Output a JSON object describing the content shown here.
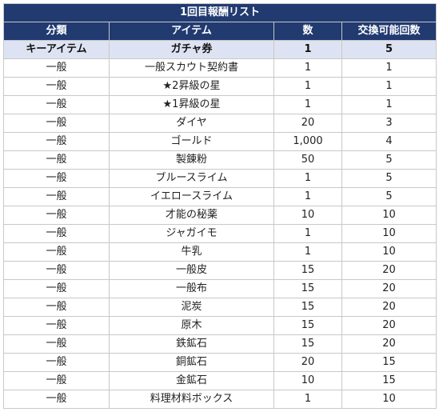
{
  "table": {
    "title": "1回目報酬リスト",
    "headers": [
      "分類",
      "アイテム",
      "数",
      "交換可能回数"
    ],
    "key_row": {
      "category": "キーアイテム",
      "item": "ガチャ券",
      "quantity": "1",
      "exchanges": "5"
    },
    "rows": [
      {
        "category": "一般",
        "item": "一般スカウト契約書",
        "quantity": "1",
        "exchanges": "1"
      },
      {
        "category": "一般",
        "item": "★2昇級の星",
        "quantity": "1",
        "exchanges": "1"
      },
      {
        "category": "一般",
        "item": "★1昇級の星",
        "quantity": "1",
        "exchanges": "1"
      },
      {
        "category": "一般",
        "item": "ダイヤ",
        "quantity": "20",
        "exchanges": "3"
      },
      {
        "category": "一般",
        "item": "ゴールド",
        "quantity": "1,000",
        "exchanges": "4"
      },
      {
        "category": "一般",
        "item": "製錬粉",
        "quantity": "50",
        "exchanges": "5"
      },
      {
        "category": "一般",
        "item": "ブルースライム",
        "quantity": "1",
        "exchanges": "5"
      },
      {
        "category": "一般",
        "item": "イエロースライム",
        "quantity": "1",
        "exchanges": "5"
      },
      {
        "category": "一般",
        "item": "才能の秘薬",
        "quantity": "10",
        "exchanges": "10"
      },
      {
        "category": "一般",
        "item": "ジャガイモ",
        "quantity": "1",
        "exchanges": "10"
      },
      {
        "category": "一般",
        "item": "牛乳",
        "quantity": "1",
        "exchanges": "10"
      },
      {
        "category": "一般",
        "item": "一般皮",
        "quantity": "15",
        "exchanges": "20"
      },
      {
        "category": "一般",
        "item": "一般布",
        "quantity": "15",
        "exchanges": "20"
      },
      {
        "category": "一般",
        "item": "泥炭",
        "quantity": "15",
        "exchanges": "20"
      },
      {
        "category": "一般",
        "item": "原木",
        "quantity": "15",
        "exchanges": "20"
      },
      {
        "category": "一般",
        "item": "鉄鉱石",
        "quantity": "15",
        "exchanges": "20"
      },
      {
        "category": "一般",
        "item": "銅鉱石",
        "quantity": "20",
        "exchanges": "15"
      },
      {
        "category": "一般",
        "item": "金鉱石",
        "quantity": "10",
        "exchanges": "15"
      },
      {
        "category": "一般",
        "item": "料理材料ボックス",
        "quantity": "1",
        "exchanges": "10"
      }
    ]
  },
  "colors": {
    "header_bg": "#213a70",
    "header_text": "#ffffff",
    "key_row_bg": "#dde3f2",
    "grid": "#c8c8c8"
  }
}
